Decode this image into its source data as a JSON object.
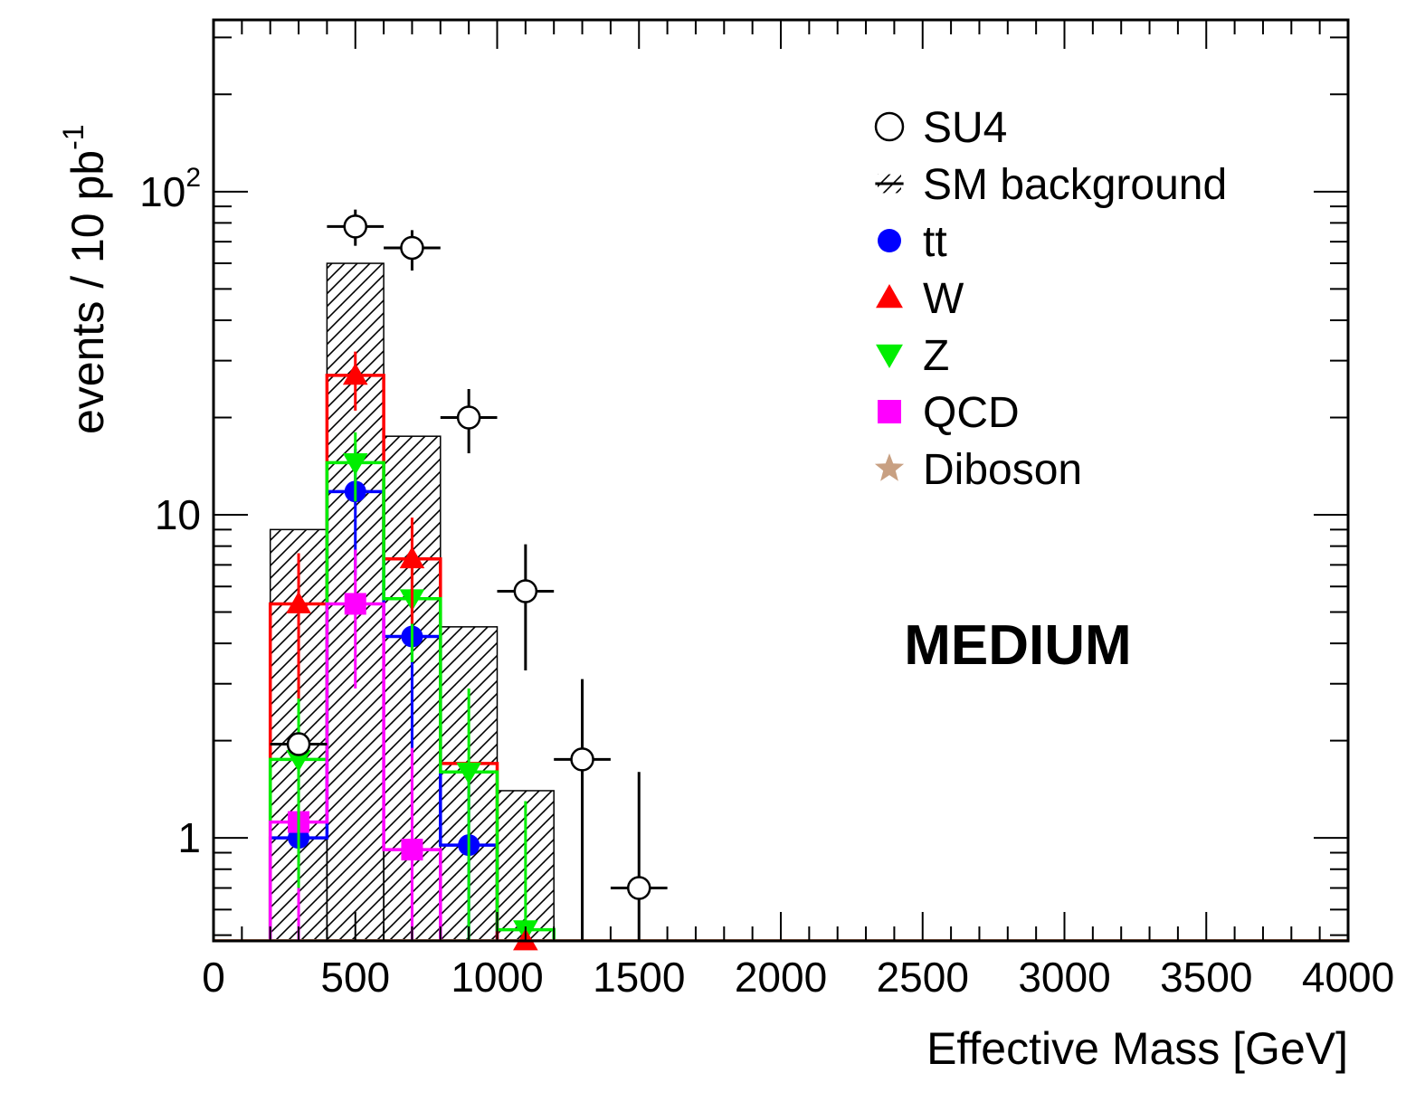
{
  "chart_data": {
    "type": "histogram",
    "xlabel": "Effective Mass [GeV]",
    "ylabel": "events / 10 pb",
    "ylabel_sup": "-1",
    "x_ticks": [
      "0",
      "500",
      "1000",
      "1500",
      "2000",
      "2500",
      "3000",
      "3500",
      "4000"
    ],
    "y_ticks": [
      {
        "label": "1",
        "sup": "",
        "value": 1
      },
      {
        "label": "10",
        "sup": "",
        "value": 10
      },
      {
        "label": "10",
        "sup": "2",
        "value": 100
      }
    ],
    "xlim": [
      0,
      4000
    ],
    "ylim": [
      0.48,
      340
    ],
    "y_scale": "log",
    "bin_width": 200,
    "annotation": "MEDIUM",
    "legend_position": "top-right",
    "legend": [
      {
        "name": "SU4",
        "marker": "open-circle",
        "color": "#000000"
      },
      {
        "name": "SM background",
        "marker": "hatched",
        "color": "#000000"
      },
      {
        "name": "tt",
        "marker": "circle",
        "color": "#0000ff"
      },
      {
        "name": "W",
        "marker": "triangle-up",
        "color": "#ff0000"
      },
      {
        "name": "Z",
        "marker": "triangle-down",
        "color": "#00ee00"
      },
      {
        "name": "QCD",
        "marker": "square",
        "color": "#ff00ff"
      },
      {
        "name": "Diboson",
        "marker": "star",
        "color": "#c8a082"
      }
    ],
    "sm_background": {
      "bins": [
        [
          200,
          400,
          9.0
        ],
        [
          400,
          600,
          60
        ],
        [
          600,
          800,
          17.5
        ],
        [
          800,
          1000,
          4.5
        ],
        [
          1000,
          1200,
          1.4
        ]
      ]
    },
    "series": [
      {
        "name": "SU4",
        "type": "points",
        "points": [
          {
            "x": 300,
            "y": 1.95,
            "lo": null,
            "hi": null
          },
          {
            "x": 500,
            "y": 78,
            "lo": 68,
            "hi": 88
          },
          {
            "x": 700,
            "y": 67,
            "lo": 57,
            "hi": 76
          },
          {
            "x": 900,
            "y": 20,
            "lo": 15.5,
            "hi": 24.5
          },
          {
            "x": 1100,
            "y": 5.8,
            "lo": 3.3,
            "hi": 8.1
          },
          {
            "x": 1300,
            "y": 1.75,
            "lo": 0.48,
            "hi": 3.1
          },
          {
            "x": 1500,
            "y": 0.7,
            "lo": 0.48,
            "hi": 1.6
          }
        ]
      },
      {
        "name": "tt",
        "type": "hist",
        "bins": [
          [
            200,
            400,
            1.0
          ],
          [
            400,
            600,
            11.8
          ],
          [
            600,
            800,
            4.2
          ],
          [
            800,
            1000,
            0.95
          ]
        ],
        "points": [
          {
            "x": 300,
            "y": 1.0,
            "lo": null,
            "hi": null
          },
          {
            "x": 500,
            "y": 11.8,
            "lo": 6.5,
            "hi": 16
          },
          {
            "x": 700,
            "y": 4.2,
            "lo": 1.8,
            "hi": 6.5
          },
          {
            "x": 900,
            "y": 0.95,
            "lo": 0.48,
            "hi": 1.5
          }
        ]
      },
      {
        "name": "W",
        "type": "hist",
        "bins": [
          [
            200,
            400,
            5.3
          ],
          [
            400,
            600,
            27
          ],
          [
            600,
            800,
            7.3
          ],
          [
            800,
            1000,
            1.7
          ]
        ],
        "points": [
          {
            "x": 300,
            "y": 5.3,
            "lo": 2.7,
            "hi": 7.6
          },
          {
            "x": 500,
            "y": 27,
            "lo": 21,
            "hi": 32
          },
          {
            "x": 700,
            "y": 7.3,
            "lo": 4.6,
            "hi": 9.8
          },
          {
            "x": 1100,
            "y": 0.48,
            "lo": null,
            "hi": null
          }
        ]
      },
      {
        "name": "Z",
        "type": "hist",
        "bins": [
          [
            200,
            400,
            1.75
          ],
          [
            400,
            600,
            14.5
          ],
          [
            600,
            800,
            5.5
          ],
          [
            800,
            1000,
            1.6
          ],
          [
            1000,
            1200,
            0.52
          ]
        ],
        "points": [
          {
            "x": 300,
            "y": 1.75,
            "lo": 0.7,
            "hi": 3.0
          },
          {
            "x": 500,
            "y": 14.5,
            "lo": 11,
            "hi": 18
          },
          {
            "x": 700,
            "y": 5.5,
            "lo": 3.5,
            "hi": 7.6
          },
          {
            "x": 900,
            "y": 1.6,
            "lo": 0.48,
            "hi": 2.9
          },
          {
            "x": 1100,
            "y": 0.52,
            "lo": 0.48,
            "hi": 1.3
          }
        ]
      },
      {
        "name": "QCD",
        "type": "hist",
        "bins": [
          [
            200,
            400,
            1.12
          ],
          [
            400,
            600,
            5.3
          ],
          [
            600,
            800,
            0.92
          ]
        ],
        "points": [
          {
            "x": 300,
            "y": 1.12,
            "lo": 0.48,
            "hi": 1.9
          },
          {
            "x": 500,
            "y": 5.3,
            "lo": 2.9,
            "hi": 7.8
          },
          {
            "x": 700,
            "y": 0.92,
            "lo": 0.48,
            "hi": 1.9
          }
        ]
      },
      {
        "name": "Diboson",
        "type": "hist",
        "bins": [],
        "points": []
      }
    ]
  }
}
